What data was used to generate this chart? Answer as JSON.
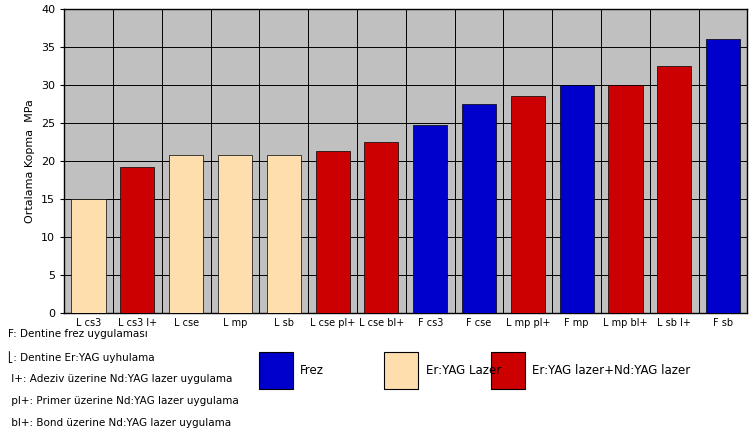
{
  "categories": [
    "L cs3",
    "L cs3 l+",
    "L cse",
    "L mp",
    "L sb",
    "L cse pl+",
    "L cse bl+",
    "F cs3",
    "F cse",
    "L mp pl+",
    "F mp",
    "L mp bl+",
    "L sb l+",
    "F sb"
  ],
  "values": [
    15.0,
    19.2,
    20.8,
    20.8,
    20.8,
    21.3,
    22.5,
    24.7,
    27.5,
    28.5,
    30.0,
    30.0,
    32.5,
    36.0
  ],
  "colors": [
    "#FFDEAD",
    "#CC0000",
    "#FFDEAD",
    "#FFDEAD",
    "#FFDEAD",
    "#CC0000",
    "#CC0000",
    "#0000CC",
    "#0000CC",
    "#CC0000",
    "#0000CC",
    "#CC0000",
    "#CC0000",
    "#0000CC"
  ],
  "ylabel": "Ortalama Kopma  MPa",
  "ylim": [
    0,
    40
  ],
  "yticks": [
    0,
    5,
    10,
    15,
    20,
    25,
    30,
    35,
    40
  ],
  "bg_color": "#C0C0C0",
  "legend_labels": [
    "Frez",
    "Er:YAG Lazer",
    "Er:YAG lazer+Nd:YAG lazer"
  ],
  "legend_colors": [
    "#0000CC",
    "#FFDEAD",
    "#CC0000"
  ],
  "note_lines": [
    "F: Dentine frez uygulaması",
    "⎣: Dentine Er:YAG uyhulama",
    " l+: Adeziv üzerine Nd:YAG lazer uygulama",
    " pl+: Primer üzerine Nd:YAG lazer uygulama",
    " bl+: Bond üzerine Nd:YAG lazer uygulama"
  ],
  "bar_width": 0.7,
  "figure_bg": "#FFFFFF",
  "chart_border_color": "#000000",
  "grid_color": "#000000",
  "axis_bg": "#C0C0C0"
}
